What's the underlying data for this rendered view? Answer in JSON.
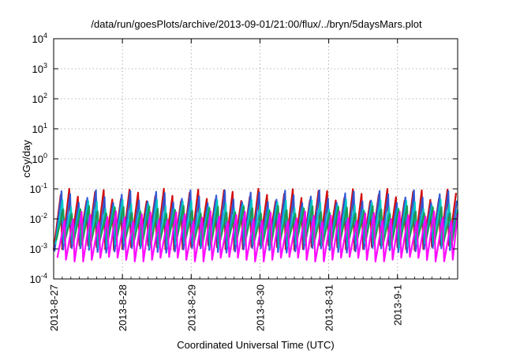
{
  "chart_data": {
    "type": "line",
    "title": "/data/run/goesPlots/archive/2013-09-01/21:00/flux/../bryn/5daysMars.plot",
    "xlabel": "Coordinated Universal Time (UTC)",
    "ylabel": "cGy/day",
    "x_type": "date",
    "xlim": [
      "2013-08-27 00:00",
      "2013-09-01 21:00"
    ],
    "ylim": [
      0.0001,
      10000
    ],
    "y_scale": "log",
    "grid": true,
    "x_ticks": [
      "2013-8-27",
      "2013-8-28",
      "2013-8-29",
      "2013-8-30",
      "2013-8-31",
      "2013-9-1"
    ],
    "y_ticks": [
      {
        "base": "10",
        "exp": "-4"
      },
      {
        "base": "10",
        "exp": "-3"
      },
      {
        "base": "10",
        "exp": "-2"
      },
      {
        "base": "10",
        "exp": "-1"
      },
      {
        "base": "10",
        "exp": "0"
      },
      {
        "base": "10",
        "exp": "1"
      },
      {
        "base": "10",
        "exp": "2"
      },
      {
        "base": "10",
        "exp": "3"
      },
      {
        "base": "10",
        "exp": "4"
      }
    ],
    "series": [
      {
        "color": "#d00000",
        "min": 0.0011,
        "max": 0.062,
        "lag_hours": 0.0
      },
      {
        "color": "#2a55d8",
        "min": 0.0009,
        "max": 0.055,
        "lag_hours": 0.3
      },
      {
        "color": "#00c8c8",
        "min": 0.0013,
        "max": 0.03,
        "lag_hours": 0.6
      },
      {
        "color": "#1a9a50",
        "min": 0.0016,
        "max": 0.02,
        "lag_hours": 0.9
      },
      {
        "color": "#ff00ff",
        "min": 0.00045,
        "max": 0.012,
        "lag_hours": 1.3
      }
    ],
    "period_hours": 3
  }
}
